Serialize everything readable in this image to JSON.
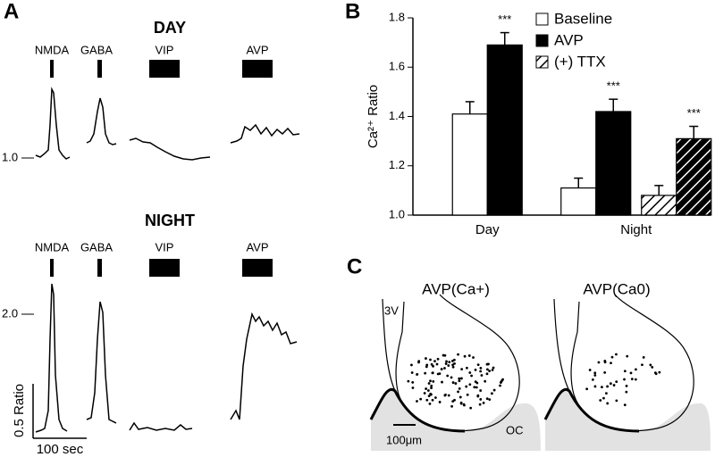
{
  "panel_a": {
    "label": "A",
    "day": {
      "title": "DAY",
      "stimuli": [
        "NMDA",
        "GABA",
        "VIP",
        "AVP"
      ],
      "baseline_label": "1.0"
    },
    "night": {
      "title": "NIGHT",
      "stimuli": [
        "NMDA",
        "GABA",
        "VIP",
        "AVP"
      ],
      "level_label": "2.0"
    },
    "scale_y": "0.5 Ratio",
    "scale_x": "100 sec"
  },
  "panel_b_label": "B",
  "chart_data": [
    {
      "type": "bar",
      "ylabel": "Ca²⁺ Ratio",
      "categories": [
        "Day",
        "Night"
      ],
      "series": [
        {
          "name": "Baseline",
          "color": "#ffffff",
          "values": [
            1.41,
            1.11
          ],
          "errors": [
            0.05,
            0.04
          ]
        },
        {
          "name": "AVP",
          "color": "#000000",
          "values": [
            1.69,
            1.42
          ],
          "errors": [
            0.05,
            0.05
          ]
        },
        {
          "name": "(+) TTX",
          "color": "#ffffff",
          "hatch": true,
          "values": [
            null,
            1.08
          ],
          "errors": [
            null,
            0.04
          ]
        },
        {
          "color": "#000000",
          "hatch": true,
          "values": [
            null,
            1.31
          ],
          "errors": [
            null,
            0.05
          ]
        }
      ],
      "annotations": [
        "***",
        "***",
        "***"
      ],
      "ylim": [
        1,
        1.8
      ],
      "yticks": [
        {
          "value": 1,
          "label": "1.0"
        },
        1.2,
        1.4,
        1.6,
        1.8
      ],
      "legend": "top-right"
    }
  ],
  "panel_c": {
    "label": "C",
    "left_title": "AVP(Ca+)",
    "right_title": "AVP(Ca0)",
    "ventricle": "3V",
    "chiasm": "OC",
    "scale": "100μm"
  }
}
